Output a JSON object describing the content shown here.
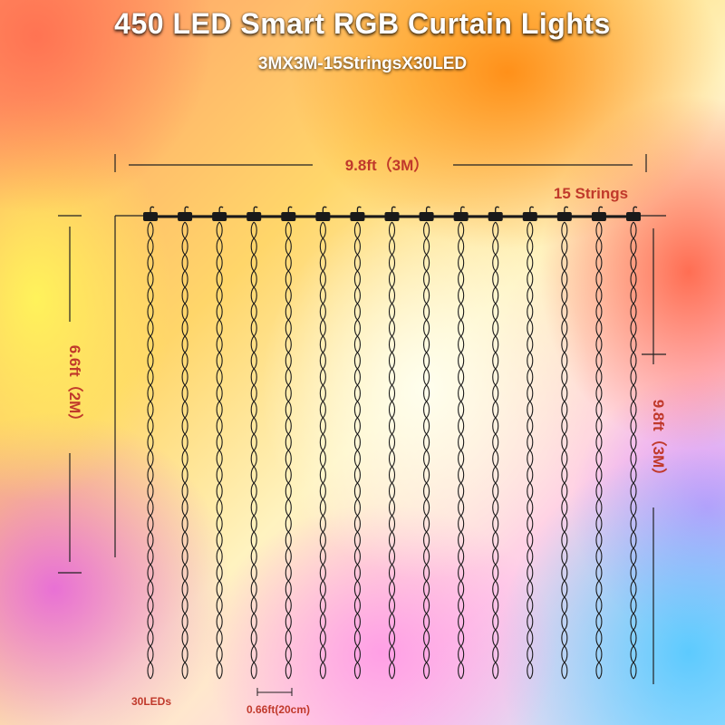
{
  "title": "450 LED Smart RGB Curtain Lights",
  "subtitle": "3MX3M-15StringsX30LED",
  "width_label": "9.8ft（3M）",
  "strings_label": "15 Strings",
  "left_height_label": "6.6ft（2M）",
  "right_height_label": "9.8ft（3M）",
  "leds_label": "30LEDs",
  "spacing_label": "0.66ft(20cm)",
  "string_count": 15,
  "leds_per_string": 30,
  "colors": {
    "label": "#c0392b",
    "wire": "#1a1a1a",
    "dim_line": "#222222"
  }
}
